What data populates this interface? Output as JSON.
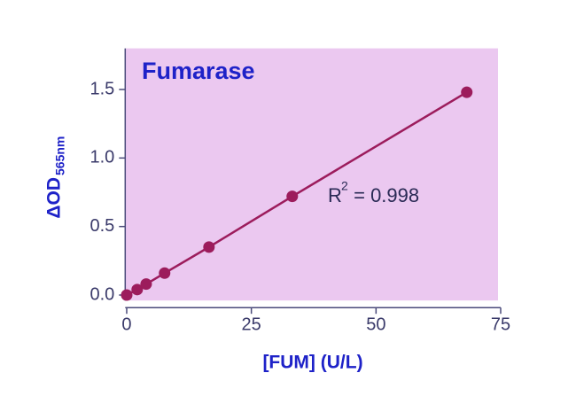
{
  "chart_data": {
    "type": "scatter-line",
    "title": "Fumarase",
    "x_label": "[FUM] (U/L)",
    "y_label": "ΔOD",
    "y_label_sub": "565nm",
    "annotation": {
      "text": "R",
      "sup": "2",
      "rest": " = 0.998"
    },
    "series": [
      {
        "color": "#9c1c5c",
        "x": [
          0,
          2.1,
          3.9,
          7.6,
          16.5,
          33.2,
          68.2
        ],
        "values": [
          0,
          0.04,
          0.08,
          0.16,
          0.35,
          0.72,
          1.48
        ]
      }
    ],
    "xlim": [
      -0.3,
      75
    ],
    "xticks": [
      0,
      25,
      50,
      75
    ],
    "ylim": [
      -0.04,
      1.8
    ],
    "yticks": [
      {
        "value": 0,
        "label": "0.0"
      },
      0.5,
      {
        "value": 1,
        "label": "1.0"
      },
      1.5
    ],
    "background": "#ebc8f0"
  }
}
